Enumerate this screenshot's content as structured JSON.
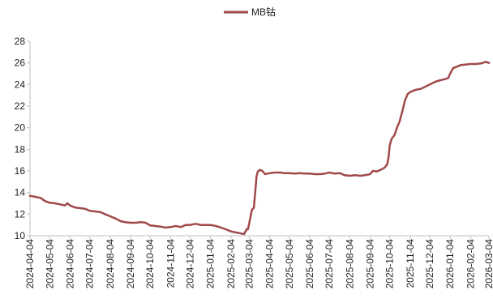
{
  "chart_data": {
    "type": "line",
    "title": "",
    "xlabel": "",
    "ylabel": "",
    "ylim": [
      10,
      28
    ],
    "yticks": [
      10,
      12,
      14,
      16,
      18,
      20,
      22,
      24,
      26,
      28
    ],
    "xlim": [
      "2024-04-04",
      "2026-03-04"
    ],
    "xticks": [
      "2024-04-04",
      "2024-05-04",
      "2024-06-04",
      "2024-07-04",
      "2024-08-04",
      "2024-09-04",
      "2024-10-04",
      "2024-11-04",
      "2024-12-04",
      "2025-01-04",
      "2025-02-04",
      "2025-03-04",
      "2025-04-04",
      "2025-05-04",
      "2025-06-04",
      "2025-07-04",
      "2025-08-04",
      "2025-09-04",
      "2025-10-04",
      "2025-11-04",
      "2025-12-04",
      "2026-01-04",
      "2026-02-04",
      "2026-03-04"
    ],
    "grid": false,
    "legend": "top-center",
    "series": [
      {
        "name": "MB钴",
        "color": "#A0494B",
        "points": [
          [
            "2024-04-04",
            13.7
          ],
          [
            "2024-04-12",
            13.6
          ],
          [
            "2024-04-20",
            13.5
          ],
          [
            "2024-04-27",
            13.2
          ],
          [
            "2024-05-04",
            13.05
          ],
          [
            "2024-05-12",
            13.0
          ],
          [
            "2024-05-20",
            12.9
          ],
          [
            "2024-05-27",
            12.8
          ],
          [
            "2024-05-31",
            13.0
          ],
          [
            "2024-06-04",
            12.8
          ],
          [
            "2024-06-12",
            12.6
          ],
          [
            "2024-06-20",
            12.55
          ],
          [
            "2024-06-27",
            12.5
          ],
          [
            "2024-07-04",
            12.3
          ],
          [
            "2024-07-12",
            12.25
          ],
          [
            "2024-07-20",
            12.2
          ],
          [
            "2024-07-27",
            12.0
          ],
          [
            "2024-08-04",
            11.8
          ],
          [
            "2024-08-12",
            11.6
          ],
          [
            "2024-08-20",
            11.35
          ],
          [
            "2024-08-27",
            11.25
          ],
          [
            "2024-09-04",
            11.2
          ],
          [
            "2024-09-12",
            11.2
          ],
          [
            "2024-09-20",
            11.25
          ],
          [
            "2024-09-27",
            11.2
          ],
          [
            "2024-10-04",
            10.95
          ],
          [
            "2024-10-12",
            10.9
          ],
          [
            "2024-10-20",
            10.85
          ],
          [
            "2024-10-27",
            10.75
          ],
          [
            "2024-11-04",
            10.8
          ],
          [
            "2024-11-12",
            10.9
          ],
          [
            "2024-11-20",
            10.8
          ],
          [
            "2024-11-27",
            11.0
          ],
          [
            "2024-12-04",
            11.0
          ],
          [
            "2024-12-12",
            11.1
          ],
          [
            "2024-12-20",
            11.0
          ],
          [
            "2024-12-27",
            11.0
          ],
          [
            "2025-01-04",
            11.0
          ],
          [
            "2025-01-12",
            10.9
          ],
          [
            "2025-01-20",
            10.75
          ],
          [
            "2025-01-27",
            10.6
          ],
          [
            "2025-02-04",
            10.4
          ],
          [
            "2025-02-12",
            10.3
          ],
          [
            "2025-02-20",
            10.2
          ],
          [
            "2025-02-24",
            10.15
          ],
          [
            "2025-02-28",
            10.6
          ],
          [
            "2025-03-02",
            10.6
          ],
          [
            "2025-03-05",
            11.5
          ],
          [
            "2025-03-08",
            12.4
          ],
          [
            "2025-03-11",
            12.6
          ],
          [
            "2025-03-13",
            14.0
          ],
          [
            "2025-03-15",
            15.5
          ],
          [
            "2025-03-17",
            15.95
          ],
          [
            "2025-03-20",
            16.1
          ],
          [
            "2025-03-24",
            16.0
          ],
          [
            "2025-03-28",
            15.7
          ],
          [
            "2025-04-04",
            15.8
          ],
          [
            "2025-04-12",
            15.85
          ],
          [
            "2025-04-20",
            15.85
          ],
          [
            "2025-04-27",
            15.8
          ],
          [
            "2025-05-04",
            15.8
          ],
          [
            "2025-05-12",
            15.75
          ],
          [
            "2025-05-20",
            15.8
          ],
          [
            "2025-05-27",
            15.75
          ],
          [
            "2025-06-04",
            15.75
          ],
          [
            "2025-06-12",
            15.7
          ],
          [
            "2025-06-20",
            15.7
          ],
          [
            "2025-06-27",
            15.75
          ],
          [
            "2025-07-04",
            15.85
          ],
          [
            "2025-07-12",
            15.75
          ],
          [
            "2025-07-20",
            15.8
          ],
          [
            "2025-07-27",
            15.6
          ],
          [
            "2025-08-04",
            15.55
          ],
          [
            "2025-08-12",
            15.6
          ],
          [
            "2025-08-20",
            15.55
          ],
          [
            "2025-08-27",
            15.6
          ],
          [
            "2025-09-04",
            15.7
          ],
          [
            "2025-09-08",
            16.0
          ],
          [
            "2025-09-14",
            15.95
          ],
          [
            "2025-09-20",
            16.1
          ],
          [
            "2025-09-26",
            16.3
          ],
          [
            "2025-09-30",
            16.6
          ],
          [
            "2025-10-02",
            17.2
          ],
          [
            "2025-10-04",
            18.4
          ],
          [
            "2025-10-07",
            19.0
          ],
          [
            "2025-10-11",
            19.3
          ],
          [
            "2025-10-15",
            20.0
          ],
          [
            "2025-10-19",
            20.6
          ],
          [
            "2025-10-23",
            21.5
          ],
          [
            "2025-10-27",
            22.5
          ],
          [
            "2025-10-31",
            23.1
          ],
          [
            "2025-11-04",
            23.3
          ],
          [
            "2025-11-12",
            23.5
          ],
          [
            "2025-11-20",
            23.6
          ],
          [
            "2025-11-27",
            23.8
          ],
          [
            "2025-12-04",
            24.0
          ],
          [
            "2025-12-12",
            24.25
          ],
          [
            "2025-12-20",
            24.4
          ],
          [
            "2025-12-27",
            24.5
          ],
          [
            "2026-01-01",
            24.6
          ],
          [
            "2026-01-04",
            25.0
          ],
          [
            "2026-01-08",
            25.5
          ],
          [
            "2026-01-14",
            25.65
          ],
          [
            "2026-01-20",
            25.8
          ],
          [
            "2026-01-27",
            25.85
          ],
          [
            "2026-02-04",
            25.9
          ],
          [
            "2026-02-12",
            25.9
          ],
          [
            "2026-02-20",
            25.95
          ],
          [
            "2026-02-27",
            26.1
          ],
          [
            "2026-03-04",
            26.0
          ]
        ]
      }
    ]
  }
}
